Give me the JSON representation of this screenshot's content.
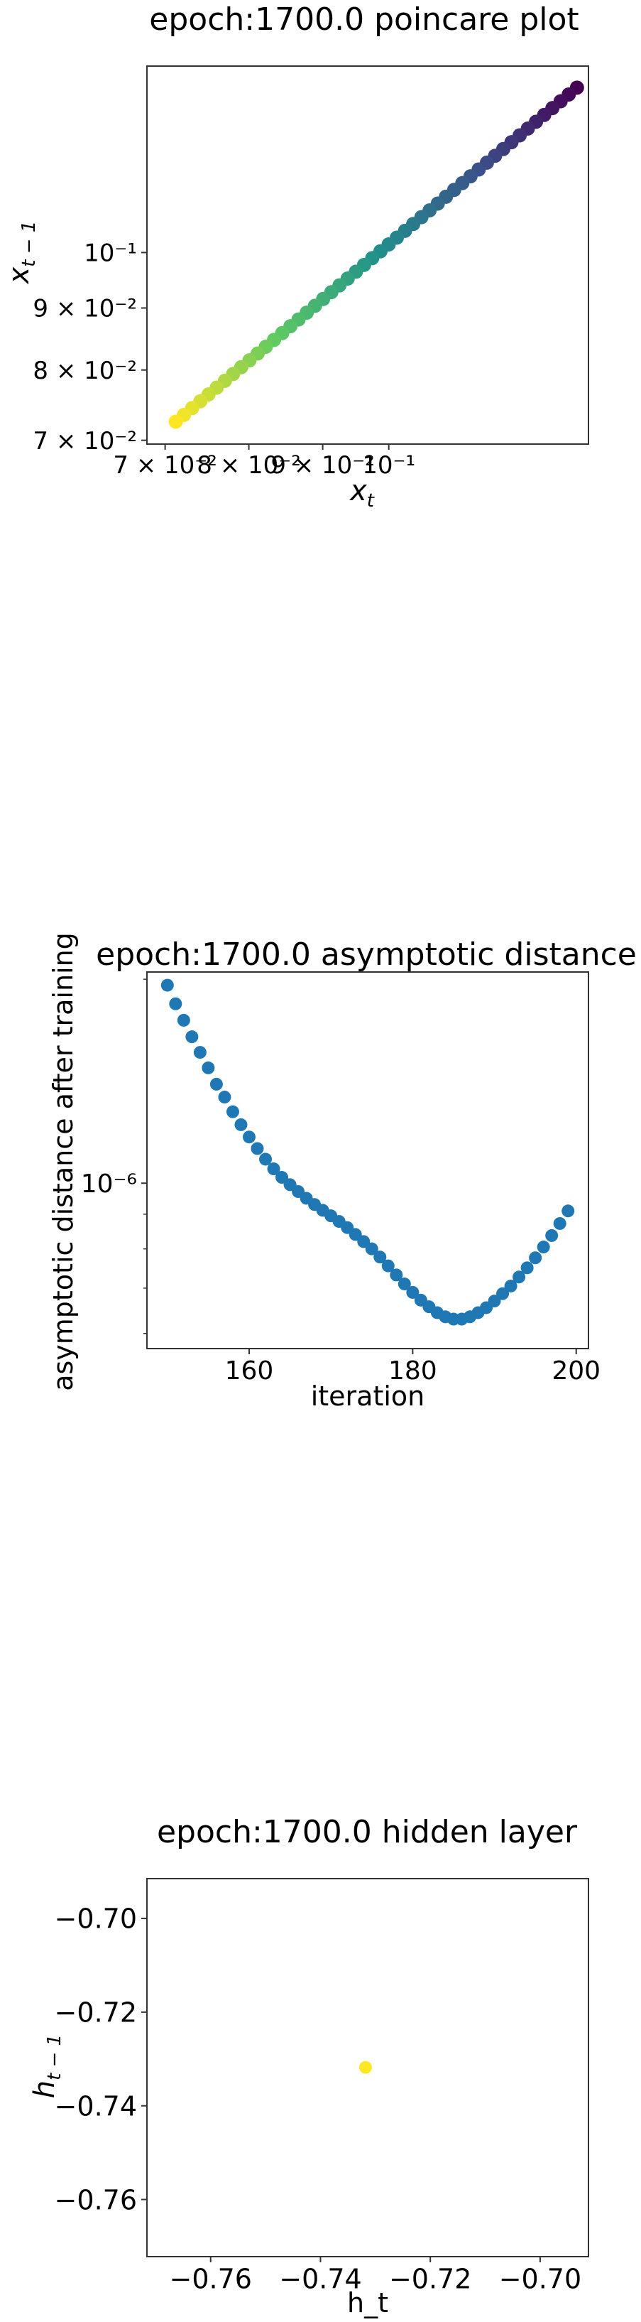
{
  "chart_data": [
    {
      "type": "scatter",
      "title": "epoch:1700.0 poincare plot",
      "xlabel_main": "x",
      "xlabel_sub": "t",
      "ylabel_main": "x",
      "ylabel_sub": "t − 1",
      "xscale": "log",
      "yscale": "log",
      "xlim": [
        0.068,
        0.1375
      ],
      "ylim": [
        0.0695,
        0.1425
      ],
      "x_tick_labels": [
        "7 × 10⁻²",
        "8 × 10⁻²",
        "9 × 10⁻²",
        "10⁻¹"
      ],
      "x_ticks": [
        0.07,
        0.08,
        0.09,
        0.1
      ],
      "y_tick_labels": [
        "7 × 10⁻²",
        "8 × 10⁻²",
        "9 × 10⁻²",
        "10⁻¹"
      ],
      "y_ticks": [
        0.07,
        0.08,
        0.09,
        0.1
      ],
      "colormap": [
        "#440154",
        "#3b528b",
        "#21918c",
        "#5ec962",
        "#fde725"
      ],
      "points": {
        "count": 50,
        "x_start": 0.135,
        "x_end": 0.0712,
        "ratio_start": 0.987,
        "ratio_end": 0.9818
      }
    },
    {
      "type": "scatter",
      "title": "epoch:1700.0 asymptotic distance",
      "xlabel": "iteration",
      "ylabel": "asymptotic distance after training",
      "yscale": "log",
      "xlim": [
        147.5,
        201.5
      ],
      "ylim": [
        5.7e-07,
        2.05e-06
      ],
      "x_ticks": [
        160,
        180,
        200
      ],
      "x_tick_labels": [
        "160",
        "180",
        "200"
      ],
      "y_ticks": [
        1e-06
      ],
      "y_tick_labels": [
        "10⁻⁶"
      ],
      "marker_color": "#1f77b4",
      "x": [
        150,
        151,
        152,
        153,
        154,
        155,
        156,
        157,
        158,
        159,
        160,
        161,
        162,
        163,
        164,
        165,
        166,
        167,
        168,
        169,
        170,
        171,
        172,
        173,
        174,
        175,
        176,
        177,
        178,
        179,
        180,
        181,
        182,
        183,
        184,
        185,
        186,
        187,
        188,
        189,
        190,
        191,
        192,
        193,
        194,
        195,
        196,
        197,
        198,
        199
      ],
      "y": [
        1.96e-06,
        1.84e-06,
        1.74e-06,
        1.645e-06,
        1.56e-06,
        1.48e-06,
        1.4e-06,
        1.34e-06,
        1.275e-06,
        1.22e-06,
        1.17e-06,
        1.125e-06,
        1.085e-06,
        1.05e-06,
        1.02e-06,
        9.95e-07,
        9.72e-07,
        9.5e-07,
        9.3e-07,
        9.12e-07,
        8.95e-07,
        8.78e-07,
        8.6e-07,
        8.4e-07,
        8.2e-07,
        8e-07,
        7.78e-07,
        7.55e-07,
        7.32e-07,
        7.1e-07,
        6.9e-07,
        6.72e-07,
        6.57e-07,
        6.44e-07,
        6.35e-07,
        6.3e-07,
        6.3e-07,
        6.35e-07,
        6.44e-07,
        6.55e-07,
        6.7e-07,
        6.87e-07,
        7.05e-07,
        7.27e-07,
        7.5e-07,
        7.76e-07,
        8.05e-07,
        8.37e-07,
        8.72e-07,
        9.1e-07
      ]
    },
    {
      "type": "scatter",
      "title": "epoch:1700.0 hidden layer",
      "xlabel": "h_t",
      "ylabel_main": "h",
      "ylabel_sub": "t − 1",
      "xlim": [
        -0.7716,
        -0.6912
      ],
      "ylim": [
        -0.7722,
        -0.6915
      ],
      "x_ticks": [
        -0.76,
        -0.74,
        -0.72,
        -0.7
      ],
      "x_tick_labels": [
        "−0.76",
        "−0.74",
        "−0.72",
        "−0.70"
      ],
      "y_ticks": [
        -0.7,
        -0.72,
        -0.74,
        -0.76
      ],
      "y_tick_labels": [
        "−0.70",
        "−0.72",
        "−0.74",
        "−0.76"
      ],
      "marker_color": "#fde725",
      "x": [
        -0.7318
      ],
      "y": [
        -0.7318
      ]
    }
  ]
}
